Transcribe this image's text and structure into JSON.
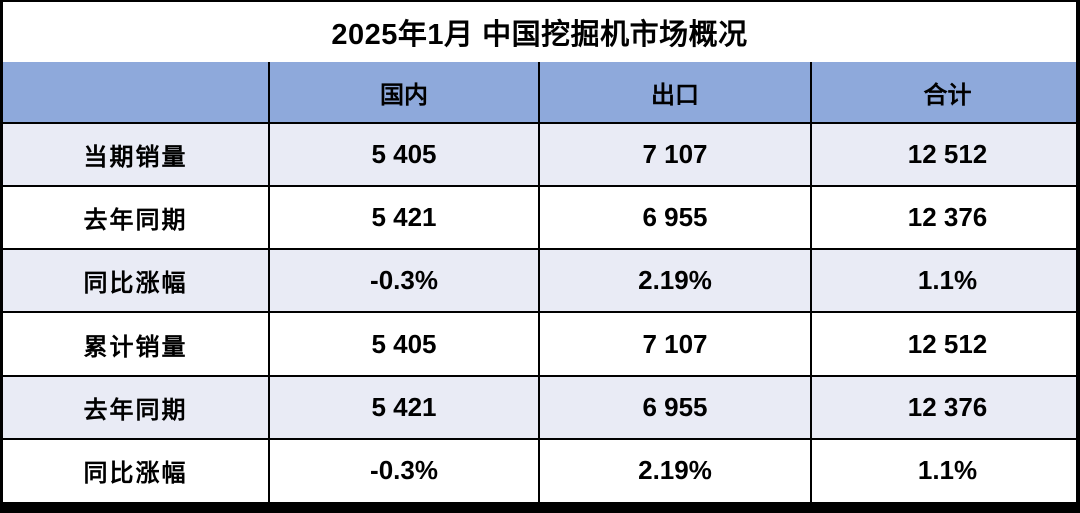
{
  "page_title": "2025年1月 中国挖掘机市场概况",
  "colors": {
    "header_bg": "#8EA9DB",
    "row_alt_bg": "#E9EBF5",
    "row_bg": "#FFFFFF",
    "border": "#000000",
    "text": "#000000"
  },
  "chart_data": {
    "type": "table",
    "title": "2025年1月 中国挖掘机市场概况",
    "columns": [
      "",
      "国内",
      "出口",
      "合计"
    ],
    "rows": [
      {
        "label": "当期销量",
        "values": [
          "5 405",
          "7 107",
          "12 512"
        ]
      },
      {
        "label": "去年同期",
        "values": [
          "5 421",
          "6 955",
          "12 376"
        ]
      },
      {
        "label": "同比涨幅",
        "values": [
          "-0.3%",
          "2.19%",
          "1.1%"
        ]
      },
      {
        "label": "累计销量",
        "values": [
          "5 405",
          "7 107",
          "12 512"
        ]
      },
      {
        "label": "去年同期",
        "values": [
          "5 421",
          "6 955",
          "12 376"
        ]
      },
      {
        "label": "同比涨幅",
        "values": [
          "-0.3%",
          "2.19%",
          "1.1%"
        ]
      }
    ]
  }
}
